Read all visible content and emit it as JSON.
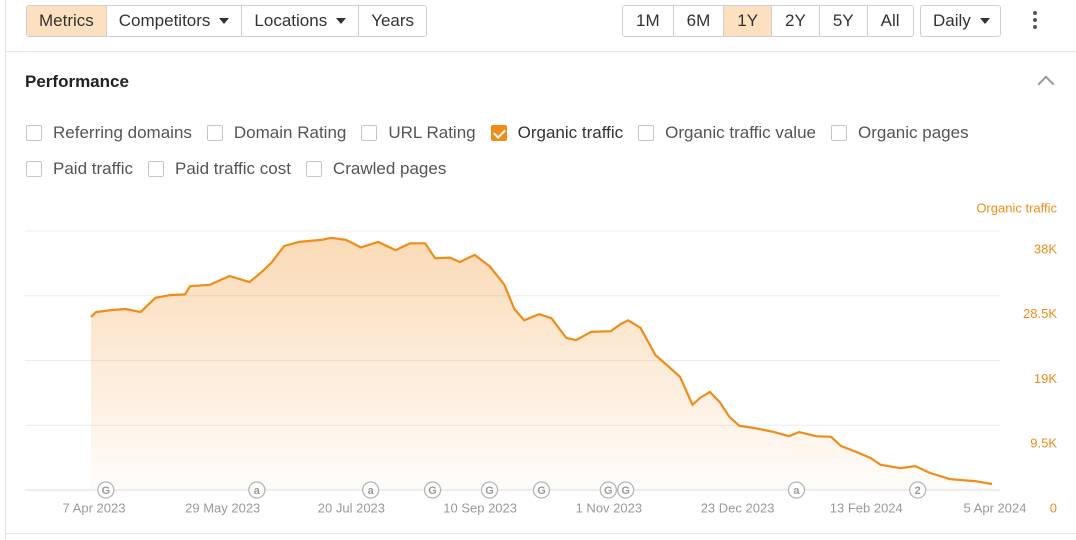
{
  "toolbar": {
    "tabs": [
      {
        "label": "Metrics",
        "active": true
      },
      {
        "label": "Competitors",
        "dropdown": true
      },
      {
        "label": "Locations",
        "dropdown": true
      },
      {
        "label": "Years"
      }
    ],
    "ranges": [
      {
        "label": "1M"
      },
      {
        "label": "6M"
      },
      {
        "label": "1Y",
        "active": true
      },
      {
        "label": "2Y"
      },
      {
        "label": "5Y"
      },
      {
        "label": "All"
      }
    ],
    "interval": "Daily"
  },
  "panel": {
    "title": "Performance",
    "metrics": [
      {
        "label": "Referring domains",
        "checked": false
      },
      {
        "label": "Domain Rating",
        "checked": false
      },
      {
        "label": "URL Rating",
        "checked": false
      },
      {
        "label": "Organic traffic",
        "checked": true
      },
      {
        "label": "Organic traffic value",
        "checked": false
      },
      {
        "label": "Organic pages",
        "checked": false
      },
      {
        "label": "Paid traffic",
        "checked": false
      },
      {
        "label": "Paid traffic cost",
        "checked": false
      },
      {
        "label": "Crawled pages",
        "checked": false
      }
    ]
  },
  "chart_data": {
    "type": "area",
    "y_label": "Organic traffic",
    "color": "#ef8c1a",
    "grid": true,
    "x": [
      "2023-04-07",
      "2023-04-09",
      "2023-04-15",
      "2023-04-21",
      "2023-04-27",
      "2023-05-03",
      "2023-05-09",
      "2023-05-15",
      "2023-05-17",
      "2023-05-25",
      "2023-06-02",
      "2023-06-10",
      "2023-06-15",
      "2023-06-19",
      "2023-06-24",
      "2023-06-30",
      "2023-07-09",
      "2023-07-13",
      "2023-07-19",
      "2023-07-25",
      "2023-08-01",
      "2023-08-08",
      "2023-08-14",
      "2023-08-20",
      "2023-08-24",
      "2023-08-30",
      "2023-09-03",
      "2023-09-09",
      "2023-09-15",
      "2023-09-21",
      "2023-09-25",
      "2023-09-29",
      "2023-10-05",
      "2023-10-10",
      "2023-10-16",
      "2023-10-20",
      "2023-10-26",
      "2023-11-03",
      "2023-11-07",
      "2023-11-10",
      "2023-11-15",
      "2023-11-21",
      "2023-11-27",
      "2023-12-01",
      "2023-12-06",
      "2023-12-09",
      "2023-12-13",
      "2023-12-17",
      "2023-12-21",
      "2023-12-25",
      "2023-12-31",
      "2024-01-04",
      "2024-01-08",
      "2024-01-14",
      "2024-01-18",
      "2024-01-25",
      "2024-01-31",
      "2024-02-04",
      "2024-02-10",
      "2024-02-16",
      "2024-02-20",
      "2024-02-28",
      "2024-03-05",
      "2024-03-11",
      "2024-03-19",
      "2024-03-29",
      "2024-04-05"
    ],
    "values": [
      25400,
      26100,
      26400,
      26550,
      26100,
      28200,
      28600,
      28700,
      29900,
      30100,
      31400,
      30500,
      32000,
      33400,
      35800,
      36400,
      36700,
      37000,
      36700,
      35600,
      36400,
      35200,
      36200,
      36200,
      34000,
      34100,
      33450,
      34500,
      32850,
      30100,
      26550,
      24900,
      25800,
      25200,
      22300,
      22000,
      23200,
      23300,
      24350,
      24900,
      23800,
      19800,
      17900,
      16600,
      12500,
      13500,
      14400,
      12900,
      10700,
      9400,
      9100,
      8800,
      8500,
      7900,
      8500,
      7900,
      7800,
      6450,
      5600,
      4700,
      3700,
      3200,
      3500,
      2500,
      1600,
      1300,
      880
    ],
    "xlim": [
      "2023-04-07",
      "2024-04-05"
    ],
    "xticks": [
      {
        "value": "2023-04-07",
        "label": "7 Apr 2023"
      },
      {
        "value": "2023-05-29",
        "label": "29 May 2023"
      },
      {
        "value": "2023-07-20",
        "label": "20 Jul 2023"
      },
      {
        "value": "2023-09-10",
        "label": "10 Sep 2023"
      },
      {
        "value": "2023-11-01",
        "label": "1 Nov 2023"
      },
      {
        "value": "2023-12-23",
        "label": "23 Dec 2023"
      },
      {
        "value": "2024-02-13",
        "label": "13 Feb 2024"
      },
      {
        "value": "2024-04-05",
        "label": "5 Apr 2024"
      }
    ],
    "ylim": [
      0,
      38000
    ],
    "yticks": [
      0,
      {
        "value": 9500,
        "label": "9.5K"
      },
      {
        "value": 19000,
        "label": "19K"
      },
      {
        "value": 28500,
        "label": "28.5K"
      },
      {
        "value": 38000,
        "label": "38K"
      }
    ],
    "annotations": [
      {
        "x": "2023-04-13",
        "label": "G"
      },
      {
        "x": "2023-06-13",
        "label": "a"
      },
      {
        "x": "2023-07-29",
        "label": "a"
      },
      {
        "x": "2023-08-23",
        "label": "G"
      },
      {
        "x": "2023-09-15",
        "label": "G"
      },
      {
        "x": "2023-10-06",
        "label": "G"
      },
      {
        "x": "2023-11-02",
        "label": "G"
      },
      {
        "x": "2023-11-09",
        "label": "G"
      },
      {
        "x": "2024-01-17",
        "label": "a"
      },
      {
        "x": "2024-03-06",
        "label": "2"
      }
    ]
  }
}
